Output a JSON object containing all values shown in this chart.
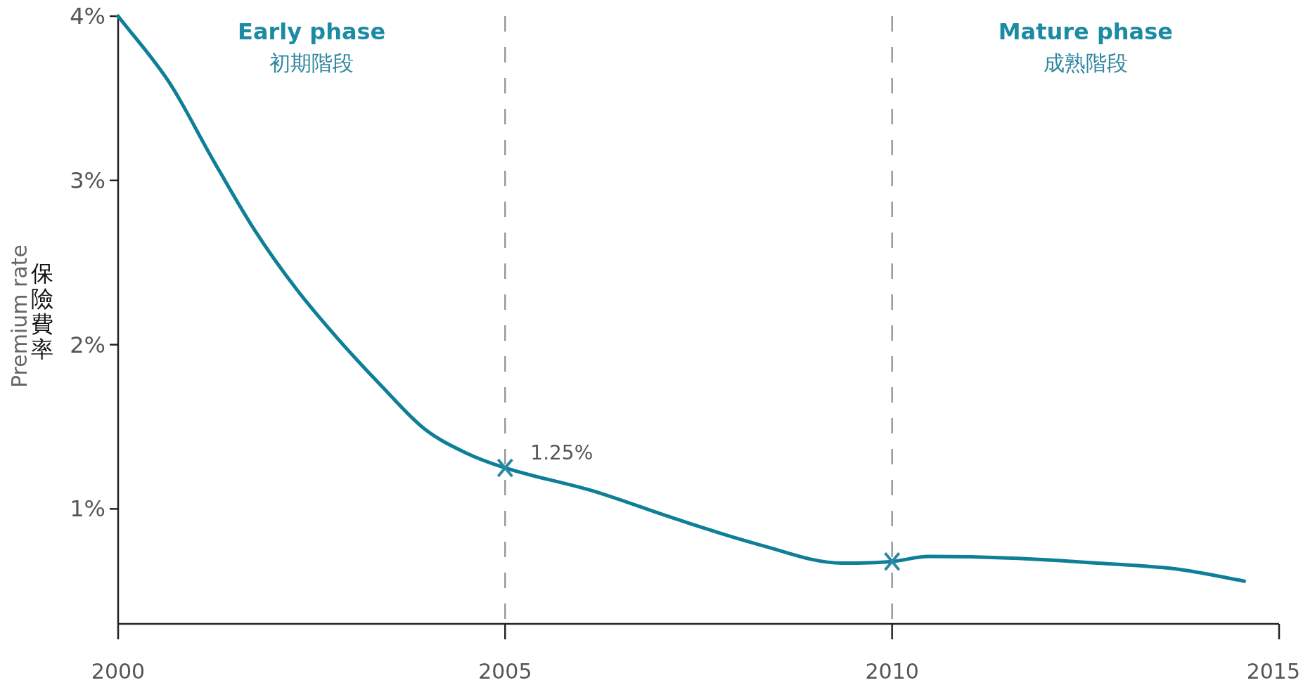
{
  "chart_data": {
    "type": "line",
    "ylabel": "Premium rate",
    "annotations": [
      "Early phase",
      "初期階段",
      "Mature phase",
      "成熟階段",
      "保險費率"
    ],
    "xlim": [
      2000,
      2015
    ],
    "xticks": [
      2000,
      2005,
      2010,
      2015
    ],
    "ylim": [
      0.3,
      4
    ],
    "yticks": [
      {
        "value": 1,
        "label": "1%"
      },
      {
        "value": 2,
        "label": "2%"
      },
      {
        "value": 3,
        "label": "3%"
      },
      {
        "value": 4,
        "label": "4%"
      }
    ],
    "ref_lines": [
      {
        "axis": "x",
        "value": 2005,
        "color": "#999999",
        "line_style": "dashed"
      },
      {
        "axis": "x",
        "value": 2010,
        "color": "#999999",
        "line_style": "dashed"
      }
    ],
    "grid": false,
    "series": [
      {
        "color": "#0e7f97",
        "marker": "none",
        "x": [
          2000,
          2000.67,
          2001.22,
          2001.76,
          2002.3,
          2002.85,
          2003.4,
          2003.95,
          2004.5,
          2005,
          2006.13,
          2007.2,
          2008.3,
          2009.35,
          2010,
          2010.47,
          2011.56,
          2012.65,
          2013.74,
          2014.55
        ],
        "values": [
          4.0,
          3.59,
          3.13,
          2.7,
          2.34,
          2.03,
          1.75,
          1.49,
          1.34,
          1.25,
          1.11,
          0.94,
          0.78,
          0.67,
          0.68,
          0.71,
          0.7,
          0.67,
          0.63,
          0.56
        ]
      },
      {
        "type": "scatter",
        "color": "#2a8aa0",
        "marker": "cross",
        "x": [
          2005,
          2010
        ],
        "values": [
          1.25,
          0.68
        ],
        "value_labels": [
          "1.25%",
          null
        ]
      }
    ]
  }
}
